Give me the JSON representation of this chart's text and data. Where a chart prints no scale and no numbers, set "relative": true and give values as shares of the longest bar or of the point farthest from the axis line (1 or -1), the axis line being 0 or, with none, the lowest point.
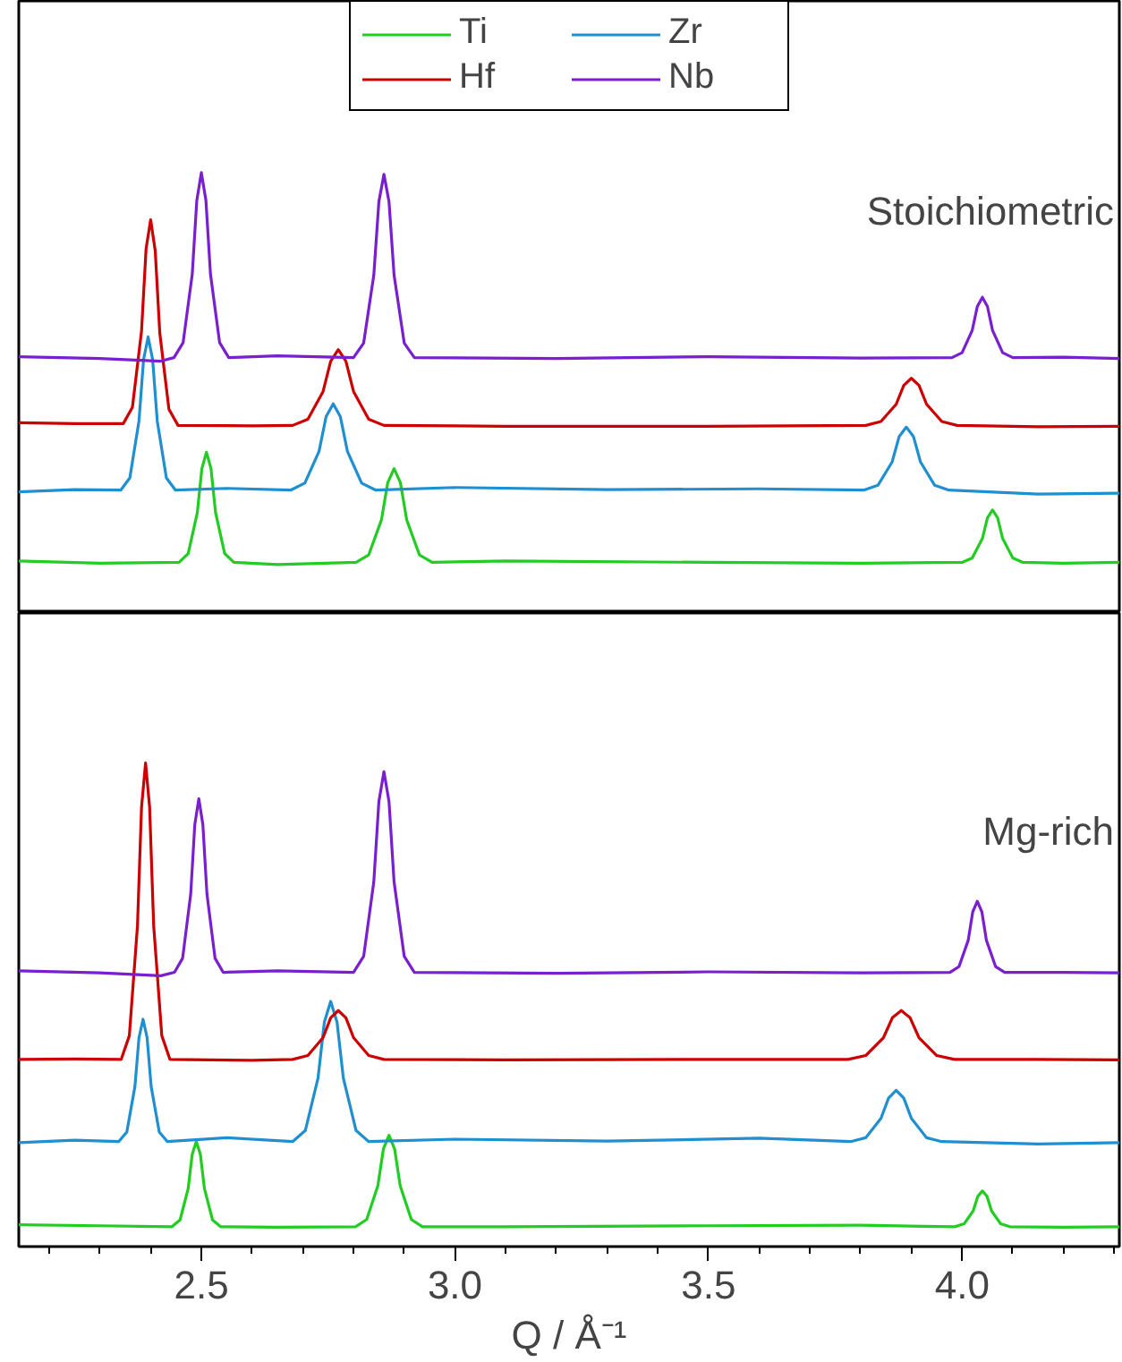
{
  "chart_data": [
    {
      "type": "line",
      "relative": true,
      "xlim": [
        2.14,
        4.31
      ],
      "tick_labels": false,
      "legend": "top",
      "grid": false,
      "annotations": [
        "Stoichiometric"
      ],
      "series": [
        {
          "name": "Ti",
          "color": "#22cc22",
          "x": [
            2.14,
            2.3,
            2.456,
            2.474,
            2.492,
            2.501,
            2.51,
            2.519,
            2.528,
            2.546,
            2.564,
            2.65,
            2.805,
            2.83,
            2.855,
            2.8675,
            2.88,
            2.8925,
            2.905,
            2.93,
            2.955,
            3.1,
            3.5,
            3.8,
            4.0,
            4.02,
            4.04,
            4.05,
            4.06,
            4.07,
            4.08,
            4.1,
            4.12,
            4.2,
            4.31
          ],
          "values": [
            0.118,
            0.113,
            0.115,
            0.135,
            0.228,
            0.328,
            0.365,
            0.328,
            0.228,
            0.135,
            0.115,
            0.11,
            0.115,
            0.132,
            0.211,
            0.296,
            0.328,
            0.296,
            0.211,
            0.132,
            0.115,
            0.118,
            0.115,
            0.113,
            0.115,
            0.125,
            0.169,
            0.216,
            0.234,
            0.216,
            0.169,
            0.125,
            0.115,
            0.113,
            0.115
          ]
        },
        {
          "name": "Zr",
          "color": "#1f8fd0",
          "x": [
            2.14,
            2.25,
            2.341,
            2.359,
            2.377,
            2.386,
            2.395,
            2.404,
            2.413,
            2.431,
            2.449,
            2.55,
            2.676,
            2.704,
            2.732,
            2.746,
            2.76,
            2.774,
            2.788,
            2.816,
            2.844,
            3.0,
            3.3,
            3.6,
            3.806,
            3.834,
            3.862,
            3.876,
            3.89,
            3.904,
            3.918,
            3.946,
            3.974,
            4.15,
            4.31
          ],
          "values": [
            0.275,
            0.28,
            0.279,
            0.307,
            0.436,
            0.575,
            0.627,
            0.575,
            0.436,
            0.307,
            0.279,
            0.283,
            0.279,
            0.295,
            0.367,
            0.446,
            0.475,
            0.446,
            0.367,
            0.295,
            0.279,
            0.285,
            0.28,
            0.282,
            0.279,
            0.29,
            0.343,
            0.401,
            0.422,
            0.401,
            0.343,
            0.29,
            0.279,
            0.27,
            0.272
          ]
        },
        {
          "name": "Hf",
          "color": "#cc0000",
          "x": [
            2.14,
            2.25,
            2.346,
            2.364,
            2.382,
            2.391,
            2.4,
            2.409,
            2.418,
            2.436,
            2.454,
            2.6,
            2.68,
            2.71,
            2.74,
            2.755,
            2.77,
            2.785,
            2.8,
            2.83,
            2.86,
            3.1,
            3.5,
            3.81,
            3.84,
            3.87,
            3.885,
            3.9,
            3.915,
            3.93,
            3.96,
            3.99,
            4.15,
            4.31
          ],
          "values": [
            0.432,
            0.43,
            0.43,
            0.467,
            0.64,
            0.827,
            0.893,
            0.823,
            0.636,
            0.463,
            0.426,
            0.425,
            0.426,
            0.44,
            0.503,
            0.572,
            0.598,
            0.572,
            0.503,
            0.44,
            0.426,
            0.424,
            0.424,
            0.426,
            0.435,
            0.474,
            0.517,
            0.533,
            0.517,
            0.474,
            0.435,
            0.426,
            0.423,
            0.424
          ]
        },
        {
          "name": "Nb",
          "color": "#7a1fd0",
          "x": [
            2.14,
            2.3,
            2.42,
            2.446,
            2.464,
            2.482,
            2.491,
            2.5,
            2.509,
            2.518,
            2.536,
            2.554,
            2.65,
            2.8,
            2.82,
            2.84,
            2.85,
            2.86,
            2.87,
            2.88,
            2.9,
            2.92,
            3.2,
            3.5,
            3.8,
            3.98,
            4.0,
            4.02,
            4.03,
            4.04,
            4.05,
            4.06,
            4.08,
            4.1,
            4.2,
            4.31
          ],
          "values": [
            0.582,
            0.578,
            0.572,
            0.58,
            0.614,
            0.769,
            0.937,
            1.0,
            0.937,
            0.769,
            0.614,
            0.58,
            0.584,
            0.58,
            0.613,
            0.767,
            0.934,
            0.996,
            0.934,
            0.767,
            0.613,
            0.58,
            0.578,
            0.582,
            0.579,
            0.58,
            0.591,
            0.642,
            0.696,
            0.717,
            0.696,
            0.642,
            0.591,
            0.58,
            0.581,
            0.578
          ]
        }
      ]
    },
    {
      "type": "line",
      "relative": true,
      "xlim": [
        2.14,
        4.31
      ],
      "tick_labels": "x",
      "grid": false,
      "xlabel": "Q / Å⁻¹",
      "annotations": [
        "Mg-rich"
      ],
      "xticks": [
        {
          "value": 2.2,
          "label": null
        },
        {
          "value": 2.3,
          "label": null
        },
        {
          "value": 2.4,
          "label": null
        },
        {
          "value": 2.5,
          "label": "2.5"
        },
        {
          "value": 2.6,
          "label": null
        },
        {
          "value": 2.7,
          "label": null
        },
        {
          "value": 2.8,
          "label": null
        },
        {
          "value": 2.9,
          "label": null
        },
        {
          "value": 3,
          "label": "3.0"
        },
        {
          "value": 3.1,
          "label": null
        },
        {
          "value": 3.2,
          "label": null
        },
        {
          "value": 3.3,
          "label": null
        },
        {
          "value": 3.4,
          "label": null
        },
        {
          "value": 3.5,
          "label": "3.5"
        },
        {
          "value": 3.6,
          "label": null
        },
        {
          "value": 3.7,
          "label": null
        },
        {
          "value": 3.8,
          "label": null
        },
        {
          "value": 3.9,
          "label": null
        },
        {
          "value": 4,
          "label": "4.0"
        },
        {
          "value": 4.1,
          "label": null
        },
        {
          "value": 4.2,
          "label": null
        },
        {
          "value": 4.3,
          "label": null
        }
      ],
      "series": [
        {
          "color": "#22cc22",
          "x": [
            2.14,
            2.3,
            2.442,
            2.458,
            2.474,
            2.482,
            2.49,
            2.498,
            2.506,
            2.522,
            2.538,
            2.65,
            2.804,
            2.826,
            2.848,
            2.859,
            2.87,
            2.881,
            2.892,
            2.914,
            2.936,
            3.1,
            3.5,
            3.8,
            3.986,
            4.004,
            4.022,
            4.031,
            4.04,
            4.049,
            4.058,
            4.076,
            4.094,
            4.2,
            4.31
          ],
          "values": [
            0.045,
            0.043,
            0.041,
            0.055,
            0.12,
            0.191,
            0.217,
            0.191,
            0.12,
            0.055,
            0.041,
            0.04,
            0.041,
            0.056,
            0.126,
            0.202,
            0.23,
            0.202,
            0.126,
            0.056,
            0.041,
            0.041,
            0.043,
            0.044,
            0.041,
            0.047,
            0.074,
            0.104,
            0.115,
            0.104,
            0.074,
            0.047,
            0.041,
            0.04,
            0.041
          ]
        },
        {
          "color": "#1f8fd0",
          "x": [
            2.14,
            2.25,
            2.337,
            2.353,
            2.369,
            2.377,
            2.385,
            2.393,
            2.401,
            2.417,
            2.433,
            2.55,
            2.68,
            2.705,
            2.73,
            2.7425,
            2.755,
            2.7675,
            2.78,
            2.805,
            2.83,
            3.0,
            3.3,
            3.6,
            3.78,
            3.81,
            3.84,
            3.855,
            3.87,
            3.885,
            3.9,
            3.93,
            3.96,
            4.15,
            4.31
          ],
          "values": [
            0.215,
            0.22,
            0.217,
            0.237,
            0.331,
            0.432,
            0.47,
            0.432,
            0.331,
            0.237,
            0.217,
            0.225,
            0.217,
            0.24,
            0.348,
            0.464,
            0.507,
            0.464,
            0.348,
            0.24,
            0.217,
            0.222,
            0.218,
            0.224,
            0.217,
            0.225,
            0.265,
            0.307,
            0.323,
            0.307,
            0.265,
            0.225,
            0.217,
            0.212,
            0.215
          ]
        },
        {
          "color": "#cc0000",
          "x": [
            2.14,
            2.25,
            2.342,
            2.358,
            2.374,
            2.382,
            2.39,
            2.398,
            2.406,
            2.422,
            2.438,
            2.6,
            2.68,
            2.71,
            2.74,
            2.755,
            2.77,
            2.785,
            2.8,
            2.83,
            2.86,
            3.1,
            3.5,
            3.775,
            3.81,
            3.845,
            3.8625,
            3.88,
            3.8975,
            3.915,
            3.95,
            3.985,
            4.15,
            4.31
          ],
          "values": [
            0.387,
            0.388,
            0.387,
            0.436,
            0.663,
            0.908,
            1.0,
            0.908,
            0.663,
            0.436,
            0.387,
            0.385,
            0.387,
            0.395,
            0.432,
            0.473,
            0.488,
            0.473,
            0.432,
            0.395,
            0.387,
            0.386,
            0.387,
            0.387,
            0.395,
            0.432,
            0.473,
            0.488,
            0.473,
            0.432,
            0.395,
            0.387,
            0.387,
            0.386
          ]
        },
        {
          "color": "#7a1fd0",
          "x": [
            2.14,
            2.3,
            2.42,
            2.447,
            2.463,
            2.479,
            2.487,
            2.495,
            2.503,
            2.511,
            2.527,
            2.543,
            2.65,
            2.8,
            2.82,
            2.84,
            2.85,
            2.86,
            2.87,
            2.88,
            2.9,
            2.92,
            3.2,
            3.5,
            3.8,
            3.976,
            3.994,
            4.012,
            4.021,
            4.03,
            4.039,
            4.048,
            4.066,
            4.084,
            4.2,
            4.31
          ],
          "values": [
            0.57,
            0.566,
            0.56,
            0.567,
            0.596,
            0.729,
            0.872,
            0.926,
            0.872,
            0.729,
            0.596,
            0.567,
            0.57,
            0.567,
            0.6,
            0.754,
            0.92,
            0.982,
            0.92,
            0.754,
            0.6,
            0.567,
            0.565,
            0.568,
            0.566,
            0.567,
            0.579,
            0.633,
            0.692,
            0.714,
            0.692,
            0.633,
            0.579,
            0.567,
            0.567,
            0.566
          ]
        }
      ]
    }
  ]
}
